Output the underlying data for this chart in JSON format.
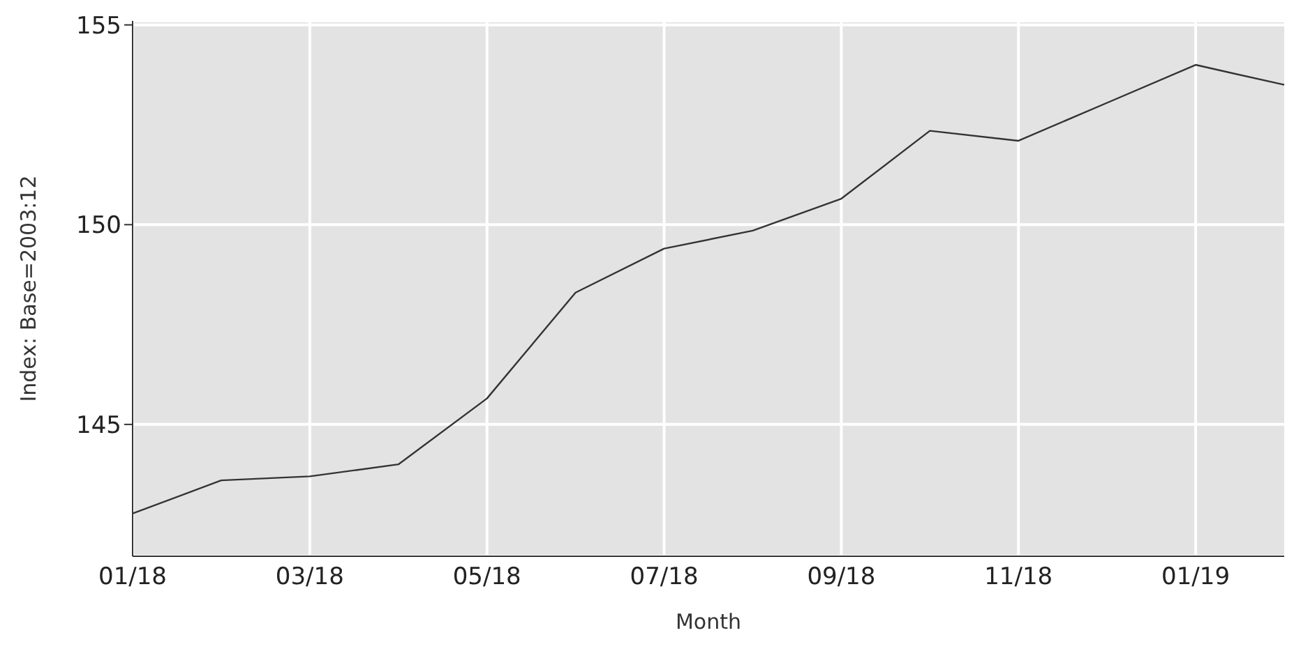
{
  "chart_data": {
    "type": "line",
    "xlabel": "Month",
    "ylabel": "Index: Base=2003:12",
    "categories": [
      "01/18",
      null,
      "03/18",
      null,
      "05/18",
      null,
      "07/18",
      null,
      "09/18",
      null,
      "11/18",
      null,
      "01/19",
      null
    ],
    "series": [
      {
        "color": "#333333",
        "values": [
          142.77,
          143.6,
          143.7,
          144.0,
          145.65,
          148.3,
          149.4,
          149.85,
          150.65,
          152.35,
          152.1,
          153.05,
          154.0,
          153.5
        ]
      }
    ],
    "ylim": [
      141.7,
      155.1
    ],
    "yticks": [
      145,
      150,
      155
    ],
    "grid": true,
    "marker": "none",
    "line_style": "solid",
    "legend": false
  }
}
